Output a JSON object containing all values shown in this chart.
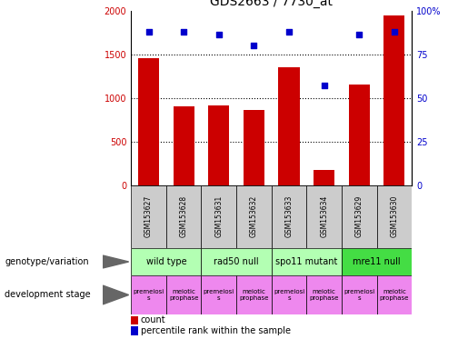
{
  "title": "GDS2663 / 7730_at",
  "samples": [
    "GSM153627",
    "GSM153628",
    "GSM153631",
    "GSM153632",
    "GSM153633",
    "GSM153634",
    "GSM153629",
    "GSM153630"
  ],
  "counts": [
    1450,
    900,
    910,
    855,
    1350,
    175,
    1150,
    1940
  ],
  "percentiles": [
    88,
    88,
    86,
    80,
    88,
    57,
    86,
    88
  ],
  "ylim_left": [
    0,
    2000
  ],
  "ylim_right": [
    0,
    100
  ],
  "yticks_left": [
    0,
    500,
    1000,
    1500,
    2000
  ],
  "yticks_right": [
    0,
    25,
    50,
    75,
    100
  ],
  "bar_color": "#cc0000",
  "dot_color": "#0000cc",
  "tick_label_color_left": "#cc0000",
  "tick_label_color_right": "#0000cc",
  "genotype_groups": [
    {
      "label": "wild type",
      "start": 0,
      "end": 2,
      "color": "#b3ffb3"
    },
    {
      "label": "rad50 null",
      "start": 2,
      "end": 4,
      "color": "#b3ffb3"
    },
    {
      "label": "spo11 mutant",
      "start": 4,
      "end": 6,
      "color": "#b3ffb3"
    },
    {
      "label": "mre11 null",
      "start": 6,
      "end": 8,
      "color": "#44dd44"
    }
  ],
  "dev_stage_groups": [
    {
      "label": "premeiosi\ns",
      "start": 0,
      "end": 1,
      "color": "#ee88ee"
    },
    {
      "label": "meiotic\nprophase",
      "start": 1,
      "end": 2,
      "color": "#ee88ee"
    },
    {
      "label": "premeiosi\ns",
      "start": 2,
      "end": 3,
      "color": "#ee88ee"
    },
    {
      "label": "meiotic\nprophase",
      "start": 3,
      "end": 4,
      "color": "#ee88ee"
    },
    {
      "label": "premeiosi\ns",
      "start": 4,
      "end": 5,
      "color": "#ee88ee"
    },
    {
      "label": "meiotic\nprophase",
      "start": 5,
      "end": 6,
      "color": "#ee88ee"
    },
    {
      "label": "premeiosi\ns",
      "start": 6,
      "end": 7,
      "color": "#ee88ee"
    },
    {
      "label": "meiotic\nprophase",
      "start": 7,
      "end": 8,
      "color": "#ee88ee"
    }
  ],
  "xlabel_geno": "genotype/variation",
  "xlabel_dev": "development stage",
  "legend_count_label": "count",
  "legend_pct_label": "percentile rank within the sample",
  "sample_box_color": "#cccccc",
  "figsize": [
    5.15,
    3.84
  ],
  "dpi": 100
}
